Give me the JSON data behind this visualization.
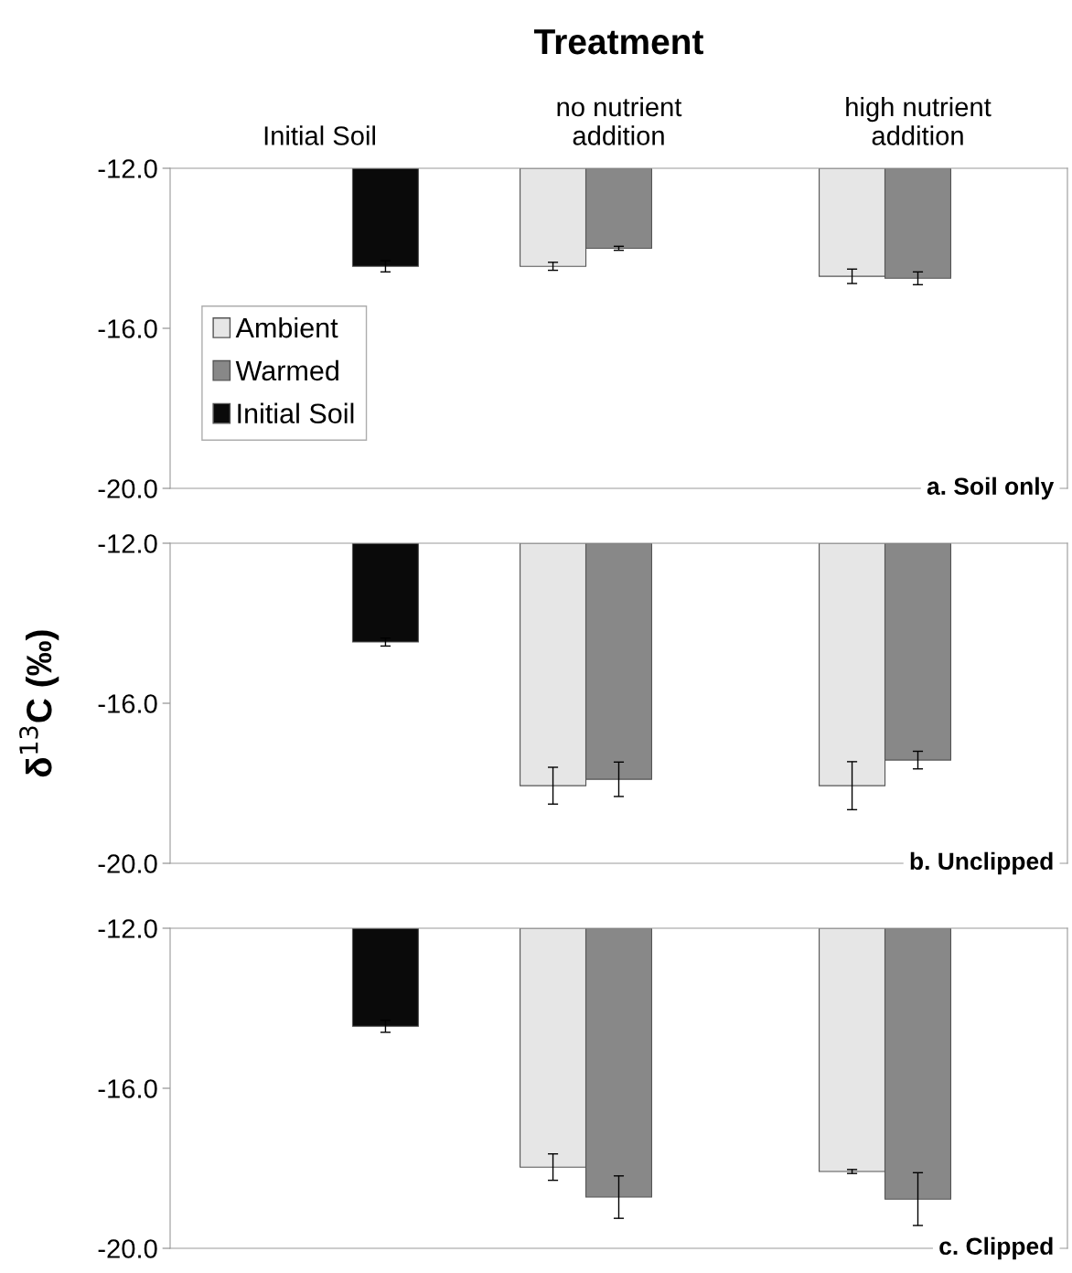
{
  "chart_data": [
    {
      "type": "bar",
      "title": "Treatment",
      "categories": [
        "Initial Soil",
        "no nutrient\naddition",
        "high nutrient\naddition"
      ],
      "series": [
        {
          "name": "Ambient",
          "color": "#e6e6e6",
          "values": [
            null,
            -14.45,
            -14.7
          ],
          "errors": [
            null,
            0.1,
            0.18
          ]
        },
        {
          "name": "Warmed",
          "color": "#888888",
          "values": [
            null,
            -14.0,
            -14.75
          ],
          "errors": [
            null,
            0.05,
            0.16
          ]
        },
        {
          "name": "Initial Soil",
          "color": "#0a0a0a",
          "values": [
            -14.45,
            null,
            null
          ],
          "errors": [
            0.14,
            null,
            null
          ]
        }
      ],
      "ylim": [
        -20,
        -12
      ],
      "yticks": [
        {
          "value": -20,
          "label": "-20.0"
        },
        {
          "value": -16,
          "label": "-16.0"
        },
        {
          "value": -12,
          "label": "-12.0"
        }
      ],
      "legend": "center left",
      "grid": false,
      "annotations": [
        "a. Soil only"
      ]
    },
    {
      "type": "bar",
      "ylabel": "δ$^{13}$C (‰)",
      "categories": [
        null,
        null,
        null
      ],
      "series": [
        {
          "color": "#e6e6e6",
          "values": [
            null,
            -18.06,
            -18.06
          ],
          "errors": [
            null,
            0.46,
            0.6
          ]
        },
        {
          "color": "#888888",
          "values": [
            null,
            -17.9,
            -17.42
          ],
          "errors": [
            null,
            0.43,
            0.22
          ]
        },
        {
          "color": "#0a0a0a",
          "values": [
            -14.47,
            null,
            null
          ],
          "errors": [
            0.1,
            null,
            null
          ]
        }
      ],
      "ylim": [
        -20,
        -12
      ],
      "yticks": [
        {
          "value": -20,
          "label": "-20.0"
        },
        {
          "value": -16,
          "label": "-16.0"
        },
        {
          "value": -12,
          "label": "-12.0"
        }
      ],
      "tick_labels": "y",
      "grid": false,
      "annotations": [
        "b. Unclipped"
      ]
    },
    {
      "type": "bar",
      "categories": [
        null,
        null,
        null
      ],
      "series": [
        {
          "color": "#e6e6e6",
          "values": [
            null,
            -17.97,
            -18.08
          ],
          "errors": [
            null,
            0.33,
            0.05
          ]
        },
        {
          "color": "#888888",
          "values": [
            null,
            -18.72,
            -18.77
          ],
          "errors": [
            null,
            0.53,
            0.66
          ]
        },
        {
          "color": "#0a0a0a",
          "values": [
            -14.45,
            null,
            null
          ],
          "errors": [
            0.15,
            null,
            null
          ]
        }
      ],
      "ylim": [
        -20,
        -12
      ],
      "yticks": [
        {
          "value": -20,
          "label": "-20.0"
        },
        {
          "value": -16,
          "label": "-16.0"
        },
        {
          "value": -12,
          "label": "-12.0"
        }
      ],
      "tick_labels": "y",
      "grid": false,
      "annotations": [
        "c. Clipped"
      ]
    }
  ]
}
